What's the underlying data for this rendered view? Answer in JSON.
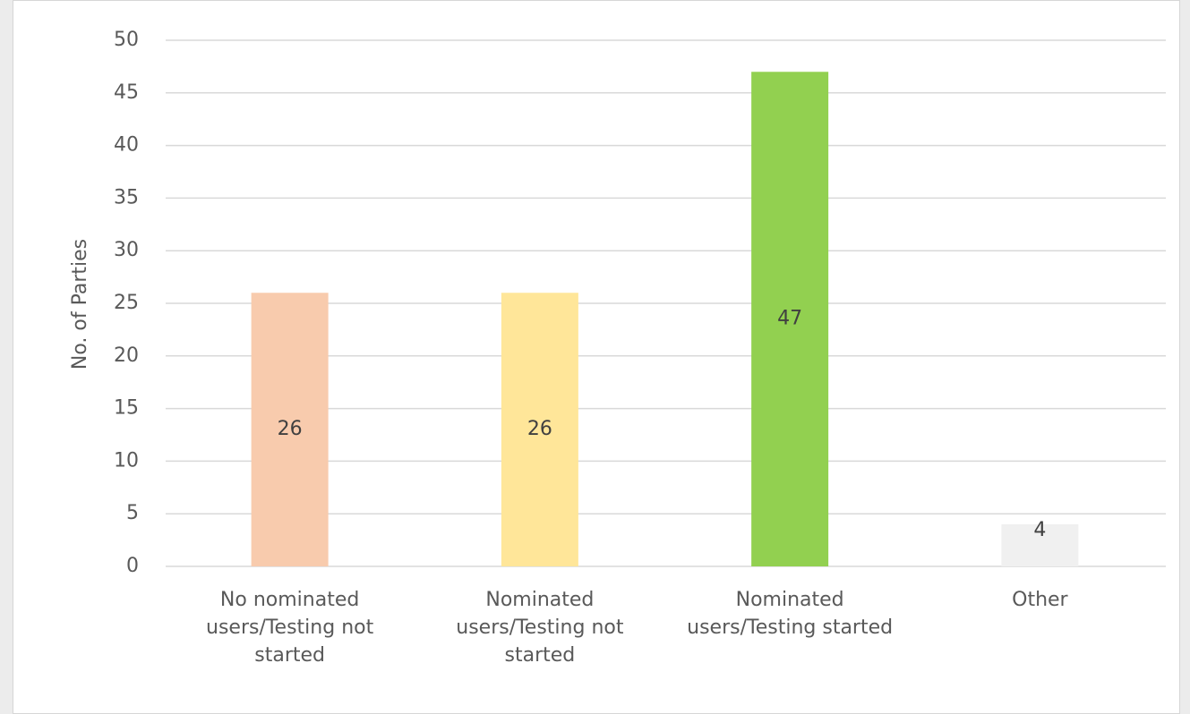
{
  "chart_data": {
    "type": "bar",
    "y_label": "No. of Parties",
    "categories": [
      "No nominated users/Testing not started",
      "Nominated users/Testing not started",
      "Nominated users/Testing started",
      "Other"
    ],
    "values": [
      26,
      26,
      47,
      4
    ],
    "colors": [
      "#f8cbad",
      "#ffe699",
      "#92d050",
      "#f0f0f0"
    ],
    "ylim": [
      0,
      50
    ],
    "yticks": [
      0,
      5,
      10,
      15,
      20,
      25,
      30,
      35,
      40,
      45,
      50
    ],
    "grid": true
  }
}
